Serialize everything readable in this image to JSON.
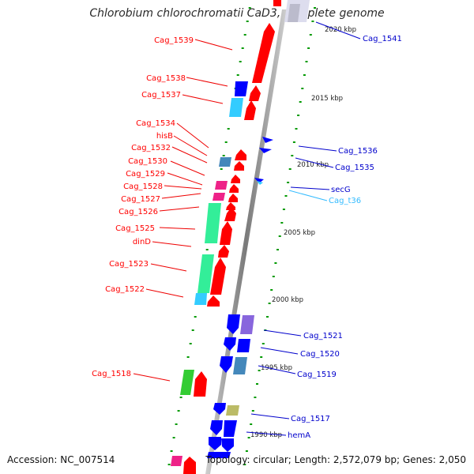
{
  "title": "Chlorobium chlorochromatii CaD3, complete genome",
  "footer": {
    "accession": "Accession: NC_007514",
    "topology": "Topology: circular; Length: 2,572,079 bp; Genes: 2,050"
  },
  "colors": {
    "forward_gene": "#ff0000",
    "reverse_gene": "#0000ff",
    "rna_gene": "#33ccff",
    "backbone": "#888888",
    "tick": "#009900",
    "pink_feature": "#ee2288",
    "green_feature": "#33ee99",
    "lime_feature": "#33cc33",
    "purple_feature": "#8866dd",
    "steel_feature": "#4488bb",
    "olive_feature": "#bbbb66"
  },
  "scale_labels": [
    "2020 kbp",
    "2015 kbp",
    "2010 kbp",
    "2005 kbp",
    "2000 kbp",
    "1995 kbp",
    "1990 kbp"
  ],
  "left_labels": [
    {
      "text": "Cag_1539",
      "color": "#ff0000"
    },
    {
      "text": "Cag_1538",
      "color": "#ff0000"
    },
    {
      "text": "Cag_1537",
      "color": "#ff0000"
    },
    {
      "text": "Cag_1534",
      "color": "#ff0000"
    },
    {
      "text": "hisB",
      "color": "#ff0000"
    },
    {
      "text": "Cag_1532",
      "color": "#ff0000"
    },
    {
      "text": "Cag_1530",
      "color": "#ff0000"
    },
    {
      "text": "Cag_1529",
      "color": "#ff0000"
    },
    {
      "text": "Cag_1528",
      "color": "#ff0000"
    },
    {
      "text": "Cag_1527",
      "color": "#ff0000"
    },
    {
      "text": "Cag_1526",
      "color": "#ff0000"
    },
    {
      "text": "Cag_1525",
      "color": "#ff0000"
    },
    {
      "text": "dinD",
      "color": "#ff0000"
    },
    {
      "text": "Cag_1523",
      "color": "#ff0000"
    },
    {
      "text": "Cag_1522",
      "color": "#ff0000"
    },
    {
      "text": "Cag_1518",
      "color": "#ff0000"
    }
  ],
  "right_labels": [
    {
      "text": "Cag_1541",
      "color": "#0000cc"
    },
    {
      "text": "Cag_1536",
      "color": "#0000cc"
    },
    {
      "text": "Cag_1535",
      "color": "#0000cc"
    },
    {
      "text": "secG",
      "color": "#0000cc"
    },
    {
      "text": "Cag_t36",
      "color": "#33bbff"
    },
    {
      "text": "Cag_1521",
      "color": "#0000cc"
    },
    {
      "text": "Cag_1520",
      "color": "#0000cc"
    },
    {
      "text": "Cag_1519",
      "color": "#0000cc"
    },
    {
      "text": "Cag_1517",
      "color": "#0000cc"
    },
    {
      "text": "hemA",
      "color": "#0000cc"
    }
  ]
}
